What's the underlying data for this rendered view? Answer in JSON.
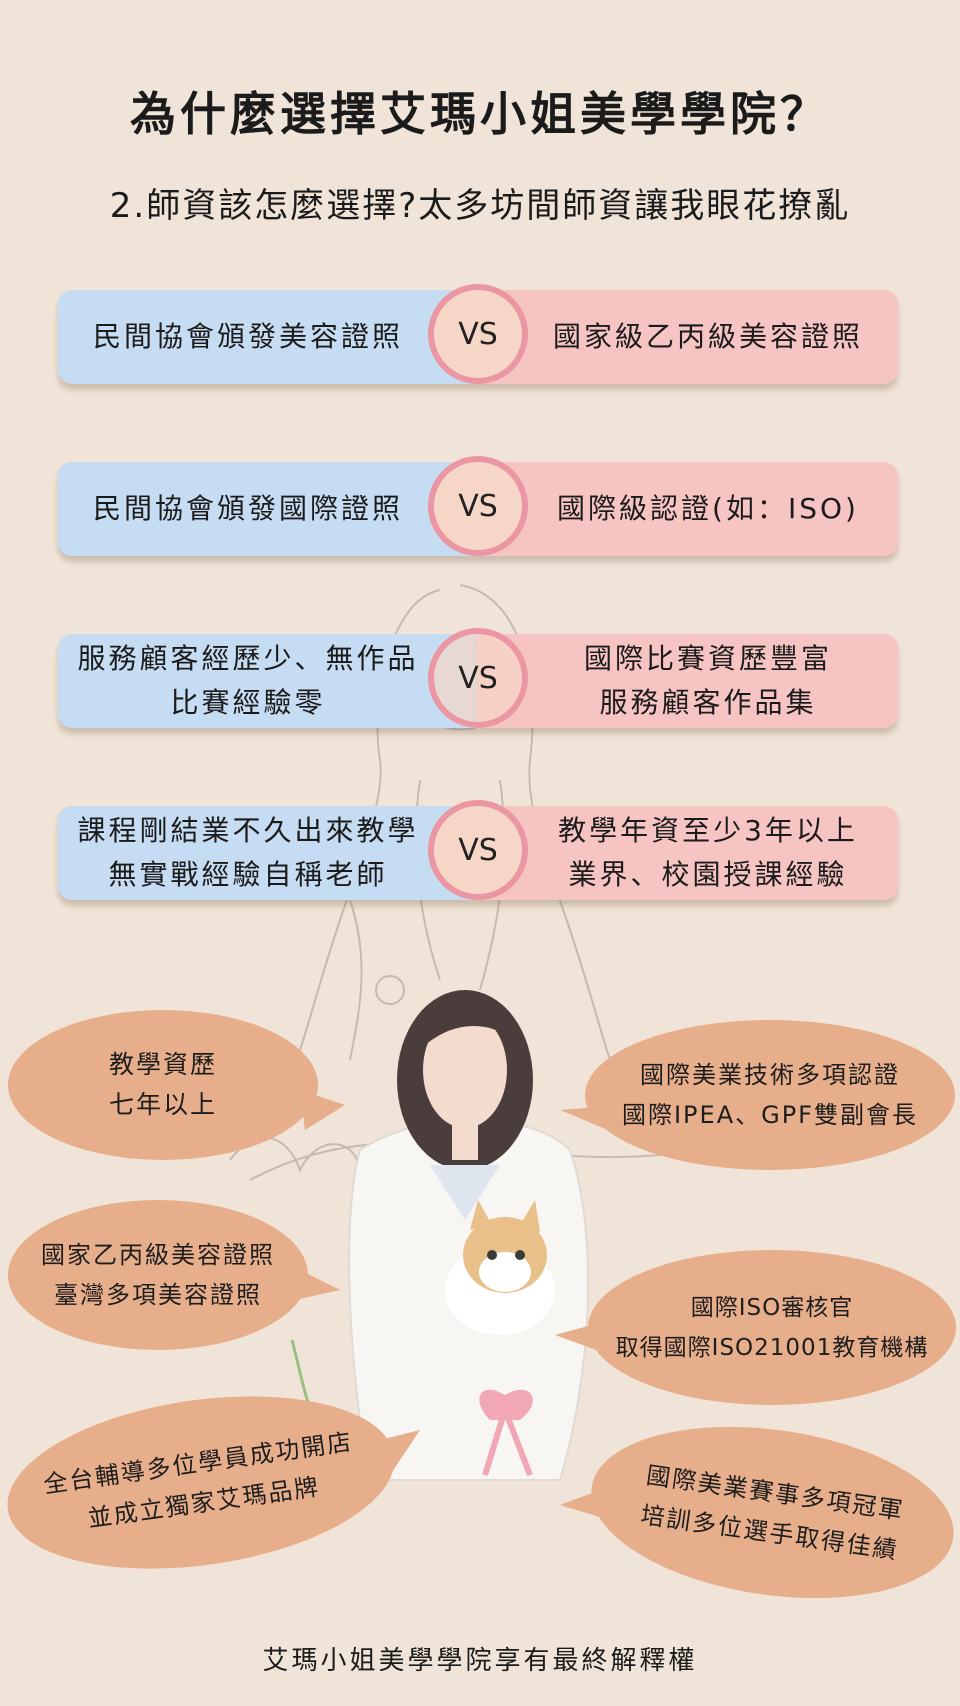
{
  "title": "為什麼選擇艾瑪小姐美學學院？",
  "subtitle": "2.師資該怎麼選擇?太多坊間師資讓我眼花撩亂",
  "vs_label": "VS",
  "comparisons": [
    {
      "left": [
        "民間協會頒發美容證照"
      ],
      "right": [
        "國家級乙丙級美容證照"
      ]
    },
    {
      "left": [
        "民間協會頒發國際證照"
      ],
      "right": [
        "國際級認證(如：ISO)"
      ]
    },
    {
      "left": [
        "服務顧客經歷少、無作品",
        "比賽經驗零"
      ],
      "right": [
        "國際比賽資歷豐富",
        "服務顧客作品集"
      ]
    },
    {
      "left": [
        "課程剛結業不久出來教學",
        "無實戰經驗自稱老師"
      ],
      "right": [
        "教學年資至少3年以上",
        "業界、校園授課經驗"
      ]
    }
  ],
  "bubbles": [
    {
      "lines": [
        "教學資歷",
        "七年以上"
      ]
    },
    {
      "lines": [
        "國際美業技術多項認證",
        "國際IPEA、GPF雙副會長"
      ]
    },
    {
      "lines": [
        "國家乙丙級美容證照",
        "臺灣多項美容證照"
      ]
    },
    {
      "lines": [
        "國際ISO審核官",
        "取得國際ISO21001教育機構"
      ]
    },
    {
      "lines": [
        "全台輔導多位學員成功開店",
        "並成立獨家艾瑪品牌"
      ]
    },
    {
      "lines": [
        "國際美業賽事多項冠軍",
        "培訓多位選手取得佳績"
      ]
    }
  ],
  "footer": "艾瑪小姐美學學院享有最終解釋權",
  "colors": {
    "background": "#f0e4d8",
    "left_panel": "#c6dcf2",
    "right_panel": "#f7c4c4",
    "vs_ring": "#ea97a3",
    "bubble": "#e7ae8b"
  }
}
